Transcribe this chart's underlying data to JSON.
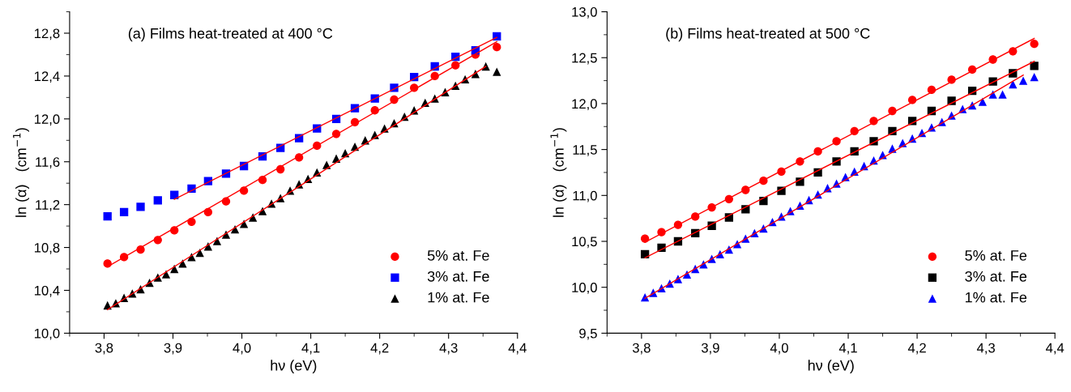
{
  "chart_data": [
    {
      "type": "scatter",
      "annotations": [
        "(a) Films heat-treated at 400 °C"
      ],
      "xlabel": "hν (eV)",
      "ylabel": "ln (α)   (cm$^{−1}$)",
      "xlim": [
        3.75,
        4.4
      ],
      "ylim": [
        10.0,
        13.0
      ],
      "xticks": [
        {
          "value": 3.8,
          "label": "3,8"
        },
        {
          "value": 3.9,
          "label": "3,9"
        },
        {
          "value": 4.0,
          "label": "4,0"
        },
        {
          "value": 4.1,
          "label": "4,1"
        },
        {
          "value": 4.2,
          "label": "4,2"
        },
        {
          "value": 4.3,
          "label": "4,3"
        },
        {
          "value": 4.4,
          "label": "4,4"
        }
      ],
      "yticks": [
        {
          "value": 10.0,
          "label": "10,0"
        },
        {
          "value": 10.4,
          "label": "10,4"
        },
        {
          "value": 10.8,
          "label": "10,8"
        },
        {
          "value": 11.2,
          "label": "11,2"
        },
        {
          "value": 11.6,
          "label": "11,6"
        },
        {
          "value": 12.0,
          "label": "12,0"
        },
        {
          "value": 12.4,
          "label": "12,4"
        },
        {
          "value": 12.8,
          "label": "12,8"
        }
      ],
      "grid": false,
      "legend": "bottom right",
      "series": [
        {
          "name": "5% at. Fe",
          "color": "#ff0000",
          "marker": "circle",
          "x": [
            3.805,
            3.829,
            3.853,
            3.878,
            3.902,
            3.927,
            3.951,
            3.977,
            4.003,
            4.03,
            4.056,
            4.083,
            4.109,
            4.137,
            4.164,
            4.193,
            4.221,
            4.25,
            4.28,
            4.31,
            4.339,
            4.37
          ],
          "values": [
            10.65,
            10.71,
            10.78,
            10.87,
            10.96,
            11.04,
            11.13,
            11.23,
            11.33,
            11.43,
            11.53,
            11.64,
            11.75,
            11.86,
            11.97,
            12.08,
            12.18,
            12.29,
            12.4,
            12.5,
            12.6,
            12.67
          ]
        },
        {
          "name": "3% at. Fe",
          "color": "#0000ff",
          "marker": "square",
          "x": [
            3.805,
            3.829,
            3.853,
            3.878,
            3.902,
            3.927,
            3.951,
            3.977,
            4.003,
            4.03,
            4.056,
            4.083,
            4.109,
            4.137,
            4.164,
            4.193,
            4.221,
            4.25,
            4.28,
            4.31,
            4.339,
            4.37
          ],
          "values": [
            11.09,
            11.13,
            11.18,
            11.24,
            11.29,
            11.35,
            11.42,
            11.49,
            11.56,
            11.65,
            11.73,
            11.82,
            11.91,
            12.0,
            12.1,
            12.19,
            12.29,
            12.39,
            12.49,
            12.58,
            12.64,
            12.77
          ]
        },
        {
          "name": "1% at. Fe",
          "color": "#000000",
          "marker": "triangle",
          "x": [
            3.805,
            3.817,
            3.829,
            3.841,
            3.853,
            3.866,
            3.878,
            3.89,
            3.902,
            3.914,
            3.927,
            3.939,
            3.951,
            3.964,
            3.977,
            3.99,
            4.003,
            4.016,
            4.03,
            4.043,
            4.056,
            4.07,
            4.083,
            4.096,
            4.109,
            4.123,
            4.137,
            4.15,
            4.164,
            4.179,
            4.193,
            4.207,
            4.221,
            4.236,
            4.25,
            4.266,
            4.28,
            4.295,
            4.31,
            4.324,
            4.339,
            4.354,
            4.37
          ],
          "values": [
            10.26,
            10.28,
            10.33,
            10.37,
            10.41,
            10.47,
            10.52,
            10.55,
            10.6,
            10.65,
            10.71,
            10.75,
            10.81,
            10.86,
            10.92,
            10.97,
            11.02,
            11.08,
            11.14,
            11.21,
            11.26,
            11.33,
            11.39,
            11.44,
            11.5,
            11.57,
            11.63,
            11.68,
            11.74,
            11.8,
            11.85,
            11.91,
            11.96,
            12.02,
            12.08,
            12.15,
            12.19,
            12.25,
            12.31,
            12.37,
            12.42,
            12.49,
            12.44
          ]
        },
        {
          "type": "line",
          "color": "#ff0000",
          "x": [
            3.805,
            4.37
          ],
          "values": [
            10.62,
            12.72
          ]
        },
        {
          "type": "line",
          "color": "#ff0000",
          "x": [
            3.902,
            4.37
          ],
          "values": [
            11.25,
            12.76
          ]
        },
        {
          "type": "line",
          "color": "#ff0000",
          "x": [
            3.805,
            4.354
          ],
          "values": [
            10.22,
            12.49
          ]
        }
      ]
    },
    {
      "type": "scatter",
      "annotations": [
        "(b) Films heat-treated at 500 °C"
      ],
      "xlabel": "hν (eV)",
      "ylabel": "ln (α)   (cm$^{−1}$)",
      "xlim": [
        3.75,
        4.4
      ],
      "ylim": [
        9.5,
        13.0
      ],
      "xticks": [
        {
          "value": 3.8,
          "label": "3,8"
        },
        {
          "value": 3.9,
          "label": "3,9"
        },
        {
          "value": 4.0,
          "label": "4,0"
        },
        {
          "value": 4.1,
          "label": "4,1"
        },
        {
          "value": 4.2,
          "label": "4,2"
        },
        {
          "value": 4.3,
          "label": "4,3"
        },
        {
          "value": 4.4,
          "label": "4,4"
        }
      ],
      "yticks": [
        {
          "value": 9.5,
          "label": "9,5"
        },
        {
          "value": 10.0,
          "label": "10,0"
        },
        {
          "value": 10.5,
          "label": "10,5"
        },
        {
          "value": 11.0,
          "label": "11,0"
        },
        {
          "value": 11.5,
          "label": "11,5"
        },
        {
          "value": 12.0,
          "label": "12,0"
        },
        {
          "value": 12.5,
          "label": "12,5"
        },
        {
          "value": 13.0,
          "label": "13,0"
        }
      ],
      "grid": false,
      "legend": "bottom right",
      "series": [
        {
          "name": "5% at. Fe",
          "color": "#ff0000",
          "marker": "circle",
          "x": [
            3.805,
            3.829,
            3.853,
            3.878,
            3.902,
            3.927,
            3.951,
            3.977,
            4.003,
            4.03,
            4.056,
            4.083,
            4.109,
            4.137,
            4.164,
            4.193,
            4.221,
            4.25,
            4.28,
            4.31,
            4.339,
            4.37
          ],
          "values": [
            10.53,
            10.6,
            10.68,
            10.77,
            10.87,
            10.96,
            11.06,
            11.16,
            11.26,
            11.37,
            11.48,
            11.59,
            11.7,
            11.81,
            11.92,
            12.04,
            12.15,
            12.26,
            12.37,
            12.48,
            12.57,
            12.65
          ]
        },
        {
          "name": "3% at. Fe",
          "color": "#000000",
          "marker": "square",
          "x": [
            3.805,
            3.829,
            3.853,
            3.878,
            3.902,
            3.927,
            3.951,
            3.977,
            4.003,
            4.03,
            4.056,
            4.083,
            4.109,
            4.137,
            4.164,
            4.193,
            4.221,
            4.25,
            4.28,
            4.31,
            4.339,
            4.37
          ],
          "values": [
            10.36,
            10.43,
            10.5,
            10.59,
            10.67,
            10.76,
            10.85,
            10.94,
            11.05,
            11.15,
            11.25,
            11.37,
            11.48,
            11.59,
            11.7,
            11.81,
            11.92,
            12.03,
            12.14,
            12.24,
            12.33,
            12.41
          ]
        },
        {
          "name": "1% at. Fe",
          "color": "#0000ff",
          "marker": "triangle",
          "x": [
            3.805,
            3.817,
            3.829,
            3.841,
            3.853,
            3.866,
            3.878,
            3.89,
            3.902,
            3.914,
            3.927,
            3.939,
            3.951,
            3.964,
            3.977,
            3.99,
            4.003,
            4.016,
            4.03,
            4.043,
            4.056,
            4.07,
            4.083,
            4.096,
            4.109,
            4.123,
            4.137,
            4.15,
            4.164,
            4.179,
            4.193,
            4.207,
            4.221,
            4.236,
            4.25,
            4.266,
            4.28,
            4.295,
            4.31,
            4.324,
            4.339,
            4.354,
            4.37
          ],
          "values": [
            9.89,
            9.94,
            9.99,
            10.04,
            10.09,
            10.14,
            10.2,
            10.25,
            10.31,
            10.36,
            10.41,
            10.47,
            10.53,
            10.59,
            10.64,
            10.71,
            10.77,
            10.83,
            10.89,
            10.95,
            11.01,
            11.08,
            11.13,
            11.2,
            11.26,
            11.32,
            11.38,
            11.44,
            11.51,
            11.57,
            11.62,
            11.68,
            11.74,
            11.8,
            11.87,
            11.94,
            11.98,
            12.02,
            12.1,
            12.1,
            12.21,
            12.25,
            12.29
          ]
        },
        {
          "type": "line",
          "color": "#ff0000",
          "x": [
            3.805,
            4.37
          ],
          "values": [
            10.49,
            12.71
          ]
        },
        {
          "type": "line",
          "color": "#ff0000",
          "x": [
            3.805,
            4.37
          ],
          "values": [
            10.32,
            12.46
          ]
        },
        {
          "type": "line",
          "color": "#ff0000",
          "x": [
            3.805,
            4.354
          ],
          "values": [
            9.88,
            12.31
          ]
        }
      ]
    }
  ]
}
